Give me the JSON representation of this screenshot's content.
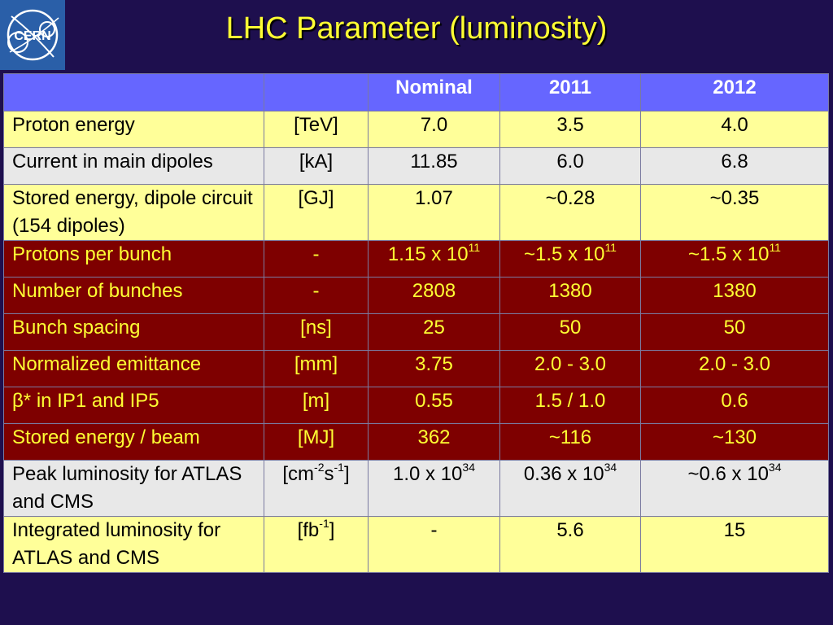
{
  "slide": {
    "title": "LHC Parameter (luminosity)",
    "logo_text": "CERN"
  },
  "table": {
    "headers": [
      "",
      "",
      "Nominal",
      "2011",
      "2012"
    ],
    "rows": [
      {
        "style": "yellow",
        "param": "Proton energy",
        "unit": "[TeV]",
        "nominal": "7.0",
        "y2011": "3.5",
        "y2012": "4.0"
      },
      {
        "style": "grey",
        "param": "Current in main dipoles",
        "unit": "[kA]",
        "nominal": "11.85",
        "y2011": "6.0",
        "y2012": "6.8"
      },
      {
        "style": "yellow",
        "param": "Stored energy, dipole circuit (154 dipoles)",
        "unit": "[GJ]",
        "nominal": "1.07",
        "y2011": "~0.28",
        "y2012": "~0.35"
      },
      {
        "style": "red",
        "param": "Protons per bunch",
        "unit": "-",
        "nominal_base": "1.15 x 10",
        "nominal_exp": "11",
        "y2011_base": "~1.5 x 10",
        "y2011_exp": "11",
        "y2012_base": "~1.5 x 10",
        "y2012_exp": "11"
      },
      {
        "style": "red",
        "param": "Number of bunches",
        "unit": "-",
        "nominal": "2808",
        "y2011": "1380",
        "y2012": "1380"
      },
      {
        "style": "red",
        "param": "Bunch spacing",
        "unit": "[ns]",
        "nominal": "25",
        "y2011": "50",
        "y2012": "50"
      },
      {
        "style": "red",
        "param": "Normalized emittance",
        "unit": "[mm]",
        "nominal": "3.75",
        "y2011": "2.0 - 3.0",
        "y2012": "2.0 - 3.0"
      },
      {
        "style": "red",
        "param": "β* in IP1 and IP5",
        "unit": "[m]",
        "nominal": "0.55",
        "y2011": "1.5 / 1.0",
        "y2012": "0.6"
      },
      {
        "style": "red",
        "param": "Stored energy / beam",
        "unit": "[MJ]",
        "nominal": "362",
        "y2011": "~116",
        "y2012": "~130"
      },
      {
        "style": "grey",
        "param": "Peak luminosity for ATLAS and CMS",
        "unit_a": "[cm",
        "unit_a_exp": "-2",
        "unit_b": "s",
        "unit_b_exp": "-1",
        "unit_c": "]",
        "nominal_base": "1.0 x 10",
        "nominal_exp": "34",
        "y2011_base": "0.36 x 10",
        "y2011_exp": "34",
        "y2012_base": "~0.6 x 10",
        "y2012_exp": "34"
      },
      {
        "style": "yellow",
        "param": "Integrated luminosity for ATLAS and CMS",
        "unit_a": "[fb",
        "unit_a_exp": "-1",
        "unit_c": "]",
        "nominal": "-",
        "y2011": "5.6",
        "y2012": "15"
      }
    ]
  },
  "colors": {
    "background": "#1e0f4e",
    "title": "#ffff33",
    "header": "#6666ff",
    "yellow_row": "#ffff99",
    "grey_row": "#e8e8e8",
    "red_row": "#7e0000",
    "red_row_text": "#ffff33"
  }
}
